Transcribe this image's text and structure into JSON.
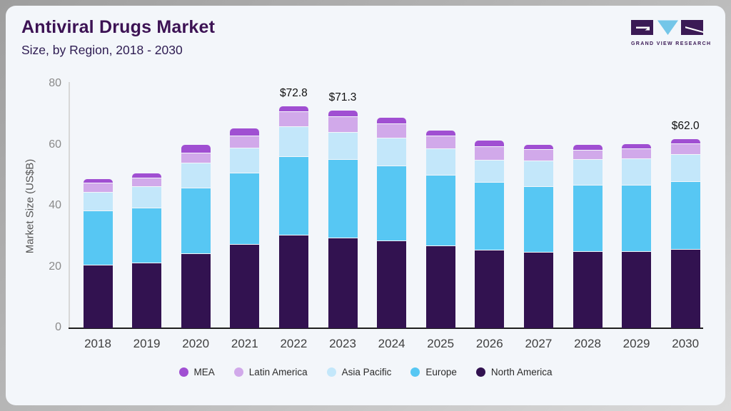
{
  "card": {
    "title": "Antiviral Drugs Market",
    "subtitle": "Size, by Region, 2018 - 2030"
  },
  "logo": {
    "text": "GRAND VIEW RESEARCH",
    "purple": "#3b1a55",
    "blue": "#74c6e8"
  },
  "chart_data": {
    "type": "bar",
    "stacked": true,
    "title": "Antiviral Drugs Market",
    "subtitle": "Size, by Region, 2018 - 2030",
    "xlabel": "",
    "ylabel": "Market Size (US$B)",
    "ylim": [
      0,
      80
    ],
    "yticks": [
      0,
      20,
      40,
      60,
      80
    ],
    "grid": false,
    "categories": [
      "2018",
      "2019",
      "2020",
      "2021",
      "2022",
      "2023",
      "2024",
      "2025",
      "2026",
      "2027",
      "2028",
      "2029",
      "2030"
    ],
    "series": [
      {
        "name": "North America",
        "color": "#321250",
        "values": [
          20.5,
          21.2,
          24.3,
          27.3,
          30.4,
          29.4,
          28.5,
          26.9,
          25.6,
          24.7,
          25.1,
          25.0,
          25.7
        ]
      },
      {
        "name": "Europe",
        "color": "#57c7f3",
        "values": [
          17.9,
          18.2,
          21.5,
          23.4,
          25.7,
          25.7,
          24.7,
          23.2,
          22.2,
          21.7,
          21.7,
          21.8,
          22.3
        ]
      },
      {
        "name": "Asia Pacific",
        "color": "#c3e7fa",
        "values": [
          6.0,
          6.8,
          8.2,
          8.2,
          9.8,
          9.0,
          9.0,
          8.5,
          7.2,
          8.3,
          8.3,
          8.6,
          8.9
        ]
      },
      {
        "name": "Latin America",
        "color": "#d1a9ea",
        "values": [
          3.0,
          2.9,
          3.3,
          4.1,
          5.0,
          5.1,
          4.6,
          4.3,
          4.3,
          3.8,
          3.1,
          3.2,
          3.5
        ]
      },
      {
        "name": "MEA",
        "color": "#a04fd2",
        "values": [
          1.6,
          1.7,
          2.8,
          2.4,
          1.9,
          2.1,
          2.2,
          1.9,
          2.2,
          1.6,
          2.0,
          1.7,
          1.6
        ]
      }
    ],
    "annotations": [
      {
        "category": "2022",
        "label": "$72.8"
      },
      {
        "category": "2023",
        "label": "$71.3"
      },
      {
        "category": "2030",
        "label": "$62.0"
      }
    ],
    "legend": [
      "MEA",
      "Latin America",
      "Asia Pacific",
      "Europe",
      "North America"
    ],
    "legend_position": "bottom"
  }
}
